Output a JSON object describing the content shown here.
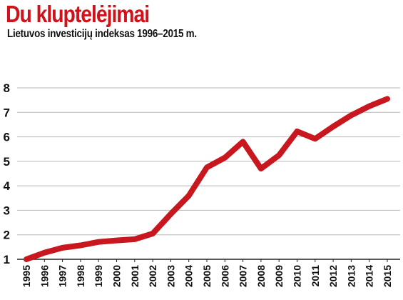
{
  "chart_data": {
    "type": "line",
    "title": "Du kluptelėjimai",
    "subtitle": "Lietuvos investicijų indeksas 1996–2015 m.",
    "xlabel": "",
    "ylabel": "",
    "categories": [
      "1995",
      "1996",
      "1997",
      "1998",
      "1999",
      "2000",
      "2001",
      "2002",
      "2003",
      "2004",
      "2005",
      "2006",
      "2007",
      "2008",
      "2009",
      "2010",
      "2011",
      "2012",
      "2013",
      "2014",
      "2015"
    ],
    "series": [
      {
        "values": [
          1.0,
          1.27,
          1.47,
          1.57,
          1.71,
          1.77,
          1.82,
          2.05,
          2.85,
          3.6,
          4.75,
          5.15,
          5.8,
          4.7,
          5.25,
          6.22,
          5.92,
          6.42,
          6.88,
          7.25,
          7.55
        ]
      }
    ],
    "ylim": [
      1,
      8
    ],
    "yticks": [
      "1",
      "2",
      "3",
      "4",
      "5",
      "6",
      "7",
      "8"
    ],
    "grid": true,
    "line_color": "#c8171e",
    "grid_color": "#b7b7b7",
    "title_color": "#d0121b"
  }
}
